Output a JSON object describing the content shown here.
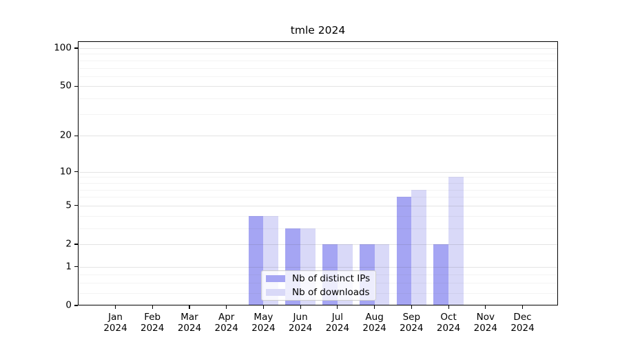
{
  "title": "tmle 2024",
  "chart_data": {
    "type": "bar",
    "title": "tmle 2024",
    "categories": [
      "Jan 2024",
      "Feb 2024",
      "Mar 2024",
      "Apr 2024",
      "May 2024",
      "Jun 2024",
      "Jul 2024",
      "Aug 2024",
      "Sep 2024",
      "Oct 2024",
      "Nov 2024",
      "Dec 2024"
    ],
    "series": [
      {
        "name": "Nb of distinct IPs",
        "color": "#a5a5f3",
        "values": [
          0,
          0,
          0,
          0,
          4,
          3,
          2,
          2,
          6,
          2,
          0,
          0
        ]
      },
      {
        "name": "Nb of downloads",
        "color": "#d9d9f8",
        "values": [
          0,
          0,
          0,
          0,
          4,
          3,
          2,
          2,
          7,
          9,
          0,
          0
        ]
      }
    ],
    "xlabel": "",
    "ylabel": "",
    "yscale": "log1p",
    "ylim": [
      0,
      113
    ],
    "yticks": [
      0,
      1,
      2,
      5,
      10,
      20,
      50,
      100
    ],
    "minor_yticks": [
      0.25,
      0.5,
      0.75,
      3,
      4,
      6,
      7,
      8,
      9,
      30,
      40,
      60,
      70,
      80,
      90
    ],
    "grid": "on",
    "legend_position": "lower center"
  }
}
